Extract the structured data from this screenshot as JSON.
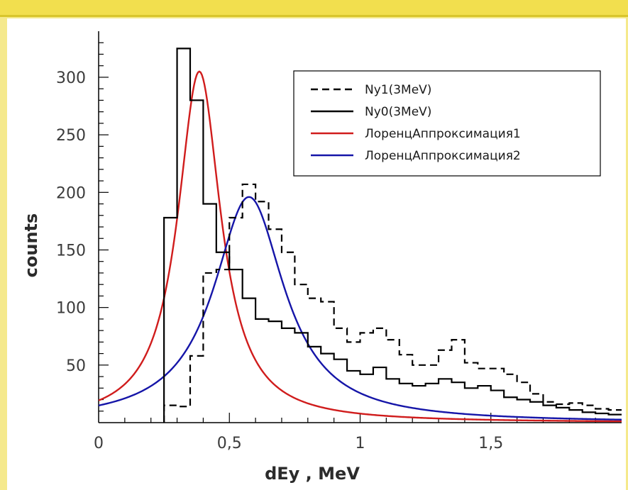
{
  "chart_data": {
    "type": "line",
    "xlabel": "dEy , MeV",
    "ylabel": "counts",
    "xlim": [
      0,
      2.0
    ],
    "ylim": [
      0,
      340
    ],
    "x_ticks": [
      {
        "value": 0,
        "label": "0"
      },
      {
        "value": 0.5,
        "label": "0,5"
      },
      {
        "value": 1.0,
        "label": "1"
      },
      {
        "value": 1.5,
        "label": "1,5"
      }
    ],
    "y_ticks": [
      {
        "value": 50,
        "label": "50"
      },
      {
        "value": 100,
        "label": "100"
      },
      {
        "value": 150,
        "label": "150"
      },
      {
        "value": 200,
        "label": "200"
      },
      {
        "value": 250,
        "label": "250"
      },
      {
        "value": 300,
        "label": "300"
      }
    ],
    "legend": {
      "position": "top-right",
      "entries": [
        {
          "label": "Ny1(3MeV)",
          "color": "#000000",
          "style": "dashed"
        },
        {
          "label": "Ny0(3MeV)",
          "color": "#000000",
          "style": "solid"
        },
        {
          "label": "ЛоренцАппроксимация1",
          "color": "#d01c1c",
          "style": "solid"
        },
        {
          "label": "ЛоренцАппроксимация2",
          "color": "#1515a8",
          "style": "solid"
        }
      ]
    },
    "series": [
      {
        "name": "Ny1(3MeV)",
        "kind": "step",
        "color": "#000000",
        "dashed": true,
        "edges": [
          0.25,
          0.3,
          0.35,
          0.4,
          0.45,
          0.5,
          0.55,
          0.6,
          0.65,
          0.7,
          0.75,
          0.8,
          0.85,
          0.9,
          0.95,
          1.0,
          1.05,
          1.1,
          1.15,
          1.2,
          1.25,
          1.3,
          1.35,
          1.4,
          1.45,
          1.5,
          1.55,
          1.6,
          1.65,
          1.7,
          1.75,
          1.8,
          1.85,
          1.9,
          1.95,
          2.0
        ],
        "values": [
          15,
          14,
          58,
          130,
          133,
          178,
          207,
          192,
          168,
          148,
          120,
          108,
          105,
          82,
          70,
          78,
          82,
          72,
          59,
          50,
          50,
          63,
          72,
          52,
          47,
          47,
          42,
          35,
          25,
          18,
          16,
          17,
          15,
          12,
          11
        ]
      },
      {
        "name": "Ny0(3MeV)",
        "kind": "step",
        "color": "#000000",
        "dashed": false,
        "edges": [
          0.25,
          0.3,
          0.35,
          0.4,
          0.45,
          0.5,
          0.55,
          0.6,
          0.65,
          0.7,
          0.75,
          0.8,
          0.85,
          0.9,
          0.95,
          1.0,
          1.05,
          1.1,
          1.15,
          1.2,
          1.25,
          1.3,
          1.35,
          1.4,
          1.45,
          1.5,
          1.55,
          1.6,
          1.65,
          1.7,
          1.75,
          1.8,
          1.85,
          1.9,
          1.95,
          2.0
        ],
        "values": [
          178,
          325,
          280,
          190,
          148,
          133,
          108,
          90,
          88,
          82,
          78,
          66,
          60,
          55,
          45,
          42,
          48,
          38,
          34,
          32,
          34,
          38,
          35,
          30,
          32,
          28,
          22,
          20,
          18,
          15,
          13,
          11,
          9,
          8,
          7
        ]
      },
      {
        "name": "ЛоренцАппроксимация1",
        "kind": "lorentzian",
        "color": "#d01c1c",
        "center": 0.385,
        "hwhm": 0.1,
        "baseline": 0,
        "amplitude": 305
      },
      {
        "name": "ЛоренцАппроксимация2",
        "kind": "lorentzian",
        "color": "#1515a8",
        "center": 0.575,
        "hwhm": 0.165,
        "baseline": 0,
        "amplitude": 196
      }
    ]
  }
}
